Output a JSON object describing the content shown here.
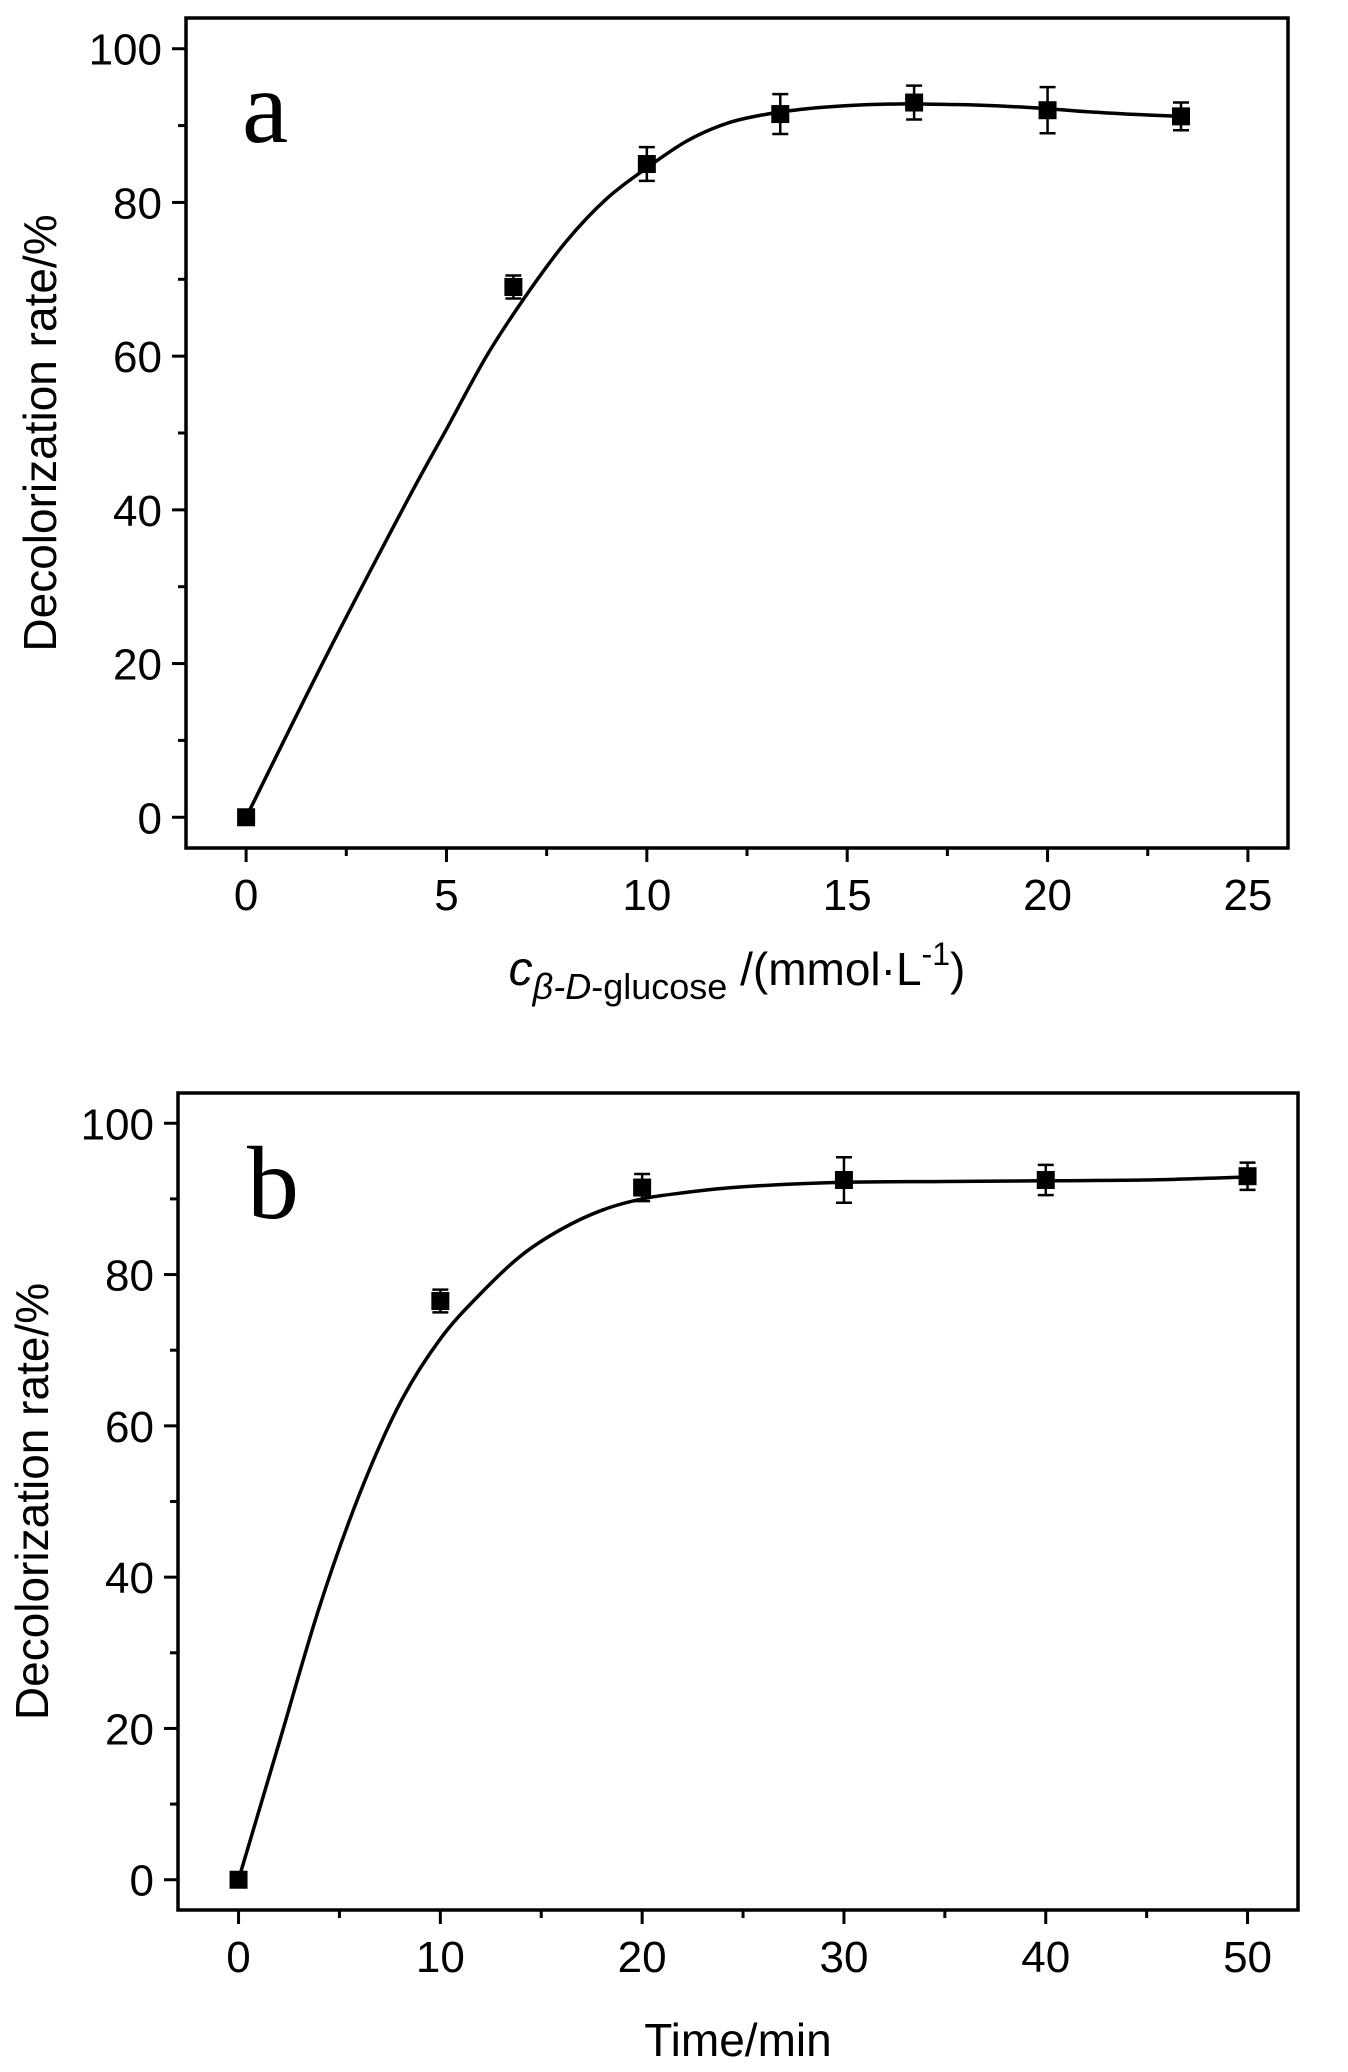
{
  "chart_data": [
    {
      "type": "scatter",
      "panel_label": "a",
      "ylabel": "Decolorization rate/%",
      "xlabel": {
        "symbol": "c",
        "subscript_greek": "β",
        "subscript_D": "-D",
        "subscript_rest": "-glucose",
        "unit": " /(mmol·L",
        "unit_sup": "-1",
        "unit_close": ")"
      },
      "xlim": [
        -1.5,
        26
      ],
      "ylim": [
        -4,
        104
      ],
      "xticks": [
        0,
        5,
        10,
        15,
        20,
        25
      ],
      "yticks": [
        0,
        20,
        40,
        60,
        80,
        100
      ],
      "grid": false,
      "series": [
        {
          "x": [
            0,
            6.67,
            10,
            13.33,
            16.67,
            20,
            23.33
          ],
          "y": [
            0,
            69,
            85,
            91.5,
            93,
            92,
            91.2
          ],
          "error": [
            0,
            1.5,
            2.2,
            2.6,
            2.2,
            3.0,
            1.8
          ]
        }
      ],
      "fit_curve": {
        "x": [
          0,
          2,
          4,
          5,
          6,
          7,
          8,
          9,
          10,
          11,
          12,
          13,
          14,
          15,
          16,
          17,
          18,
          19,
          20,
          21,
          22,
          23.33
        ],
        "y": [
          0,
          21,
          41,
          50.5,
          60,
          68,
          75,
          80.5,
          84.5,
          88,
          90.3,
          91.5,
          92.2,
          92.6,
          92.8,
          92.8,
          92.7,
          92.5,
          92.2,
          91.8,
          91.5,
          91.2
        ]
      }
    },
    {
      "type": "scatter",
      "panel_label": "b",
      "ylabel": "Decolorization rate/%",
      "xlabel": "Time/min",
      "xlim": [
        -3,
        52.5
      ],
      "ylim": [
        -4,
        104
      ],
      "xticks": [
        0,
        10,
        20,
        30,
        40,
        50
      ],
      "yticks": [
        0,
        20,
        40,
        60,
        80,
        100
      ],
      "grid": false,
      "series": [
        {
          "x": [
            0,
            10,
            20,
            30,
            40,
            50
          ],
          "y": [
            0,
            76.5,
            91.5,
            92.5,
            92.5,
            93
          ],
          "error": [
            0,
            1.5,
            1.8,
            3.0,
            2.0,
            1.8
          ]
        }
      ],
      "fit_curve": {
        "x": [
          0,
          2,
          4,
          6,
          8,
          10,
          12,
          14,
          16,
          18,
          20,
          22,
          25,
          30,
          35,
          40,
          45,
          50
        ],
        "y": [
          0,
          18,
          36,
          51,
          63,
          71.5,
          77.5,
          82.5,
          86,
          88.5,
          90,
          90.8,
          91.6,
          92.2,
          92.3,
          92.4,
          92.5,
          92.9
        ]
      }
    }
  ]
}
